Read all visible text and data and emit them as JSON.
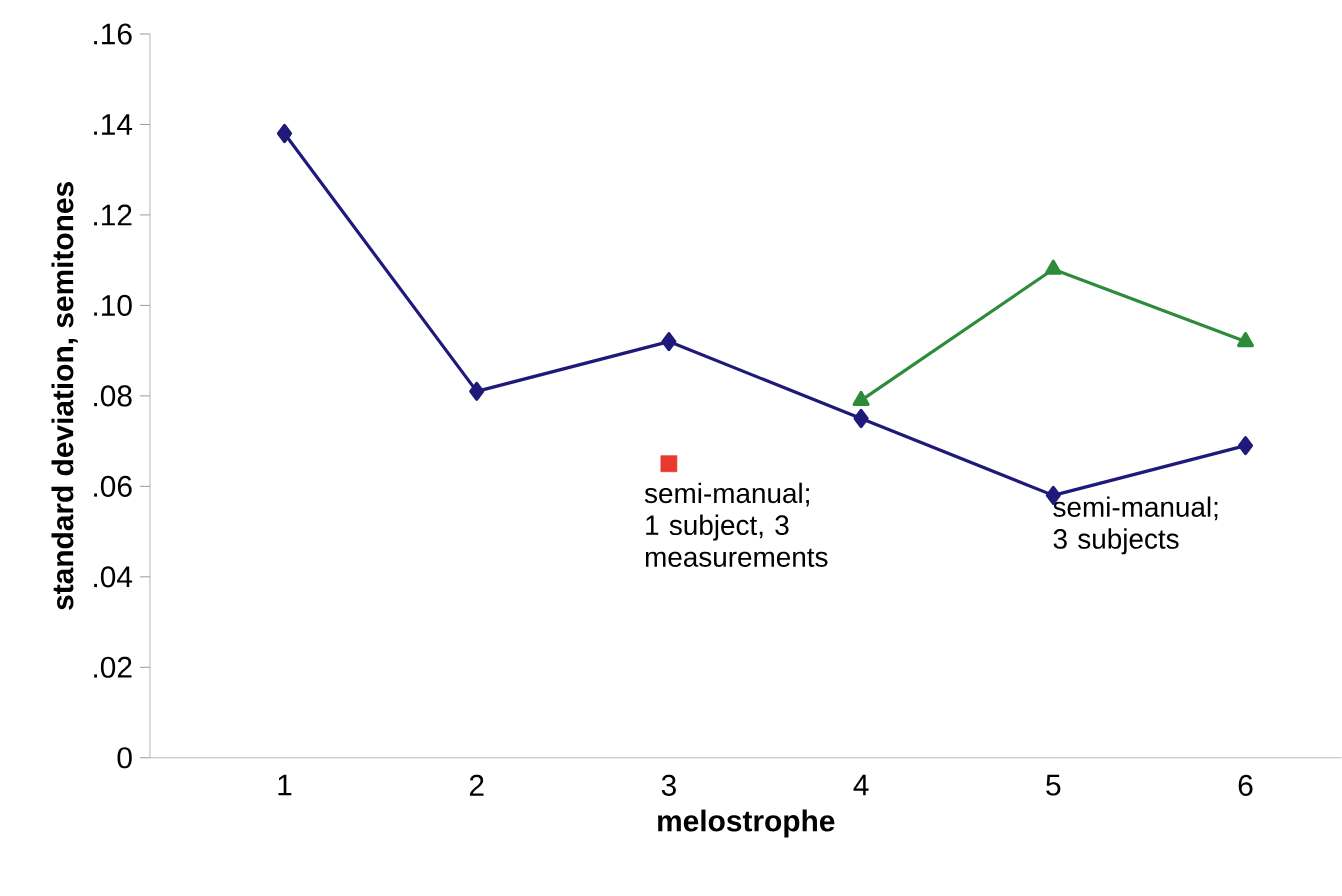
{
  "chart_data": {
    "type": "line",
    "xlabel": "melostrophe",
    "ylabel": "standard deviation, semitones",
    "categories": [
      "1",
      "2",
      "3",
      "4",
      "5",
      "6"
    ],
    "series": [
      {
        "name": "semi-manual; 3 subjects",
        "color": "#1f1a7a",
        "marker": "diamond",
        "values": [
          0.138,
          0.081,
          0.092,
          0.075,
          0.058,
          0.069
        ]
      },
      {
        "color": "#2e8b3a",
        "marker": "triangle",
        "values": [
          null,
          null,
          null,
          0.079,
          0.108,
          0.092
        ]
      },
      {
        "name": "semi-manual; 1 subject, 3 measurements",
        "type": "scatter",
        "color": "#e8392f",
        "marker": "square",
        "values": [
          null,
          null,
          0.065,
          null,
          null,
          null
        ]
      }
    ],
    "ylim": [
      0,
      0.16
    ],
    "yticks": [
      0,
      {
        "value": 0.02,
        "label": ".02"
      },
      {
        "value": 0.04,
        "label": ".04"
      },
      {
        "value": 0.06,
        "label": ".06"
      },
      {
        "value": 0.08,
        "label": ".08"
      },
      {
        "value": 0.1,
        "label": ".10"
      },
      {
        "value": 0.12,
        "label": ".12"
      },
      {
        "value": 0.14,
        "label": ".14"
      },
      {
        "value": 0.16,
        "label": ".16"
      }
    ],
    "grid": false
  }
}
